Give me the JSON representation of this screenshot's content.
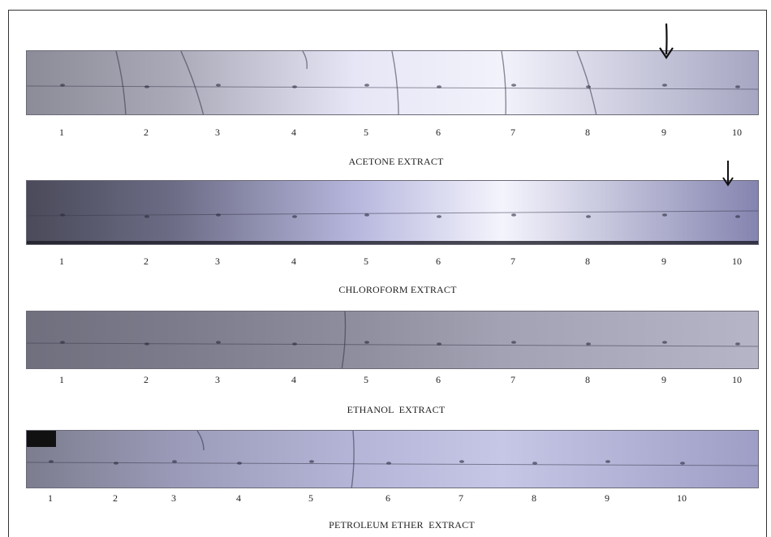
{
  "panels": [
    {
      "id": "acetone",
      "caption": "ACETONE EXTRACT",
      "lanes": [
        "1",
        "2",
        "3",
        "4",
        "5",
        "6",
        "7",
        "8",
        "9",
        "10"
      ],
      "marked_lane": "9",
      "gradient": [
        "#8c8c98",
        "#a9a9b8",
        "#e6e6f6",
        "#f2f2fb",
        "#a6a6c2"
      ]
    },
    {
      "id": "chloroform",
      "caption": "CHLOROFORM EXTRACT",
      "lanes": [
        "1",
        "2",
        "3",
        "4",
        "5",
        "6",
        "7",
        "8",
        "9",
        "10"
      ],
      "marked_lane": "10",
      "gradient": [
        "#4a4a5a",
        "#6c6c86",
        "#b7b7de",
        "#f4f4fd",
        "#8484b0"
      ]
    },
    {
      "id": "ethanol",
      "caption": "ETHANOL  EXTRACT",
      "lanes": [
        "1",
        "2",
        "3",
        "4",
        "5",
        "6",
        "7",
        "8",
        "9",
        "10"
      ],
      "marked_lane": "",
      "gradient": [
        "#6f6f7e",
        "#7b7b8b",
        "#8e8e9e",
        "#a2a2b4",
        "#b5b5c7"
      ]
    },
    {
      "id": "petroleum",
      "caption": "PETROLEUM ETHER  EXTRACT",
      "lanes": [
        "1",
        "2",
        "3",
        "4",
        "5",
        "6",
        "7",
        "8",
        "9",
        "10"
      ],
      "marked_lane": "",
      "gradient": [
        "#7d7d8f",
        "#9a9ab8",
        "#b5b5d8",
        "#c6c6e6",
        "#9e9ec6"
      ]
    }
  ]
}
